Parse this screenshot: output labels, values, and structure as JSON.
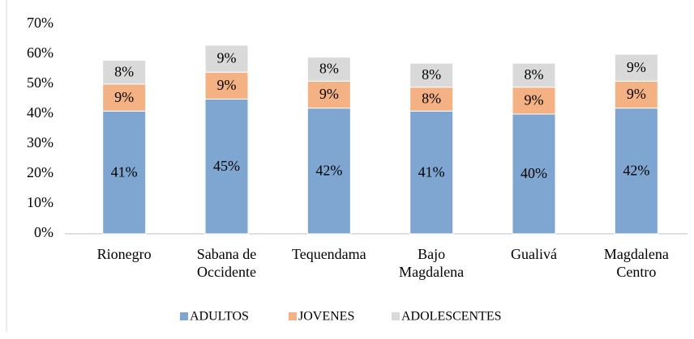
{
  "chart_data": {
    "type": "stacked_bar",
    "categories": [
      "Rionegro",
      "Sabana de Occidente",
      "Tequendama",
      "Bajo Magdalena",
      "Gualivá",
      "Magdalena Centro"
    ],
    "series": [
      {
        "name": "ADULTOS",
        "color": "#7ea6d0",
        "values": [
          41,
          45,
          42,
          41,
          40,
          42
        ],
        "value_labels": [
          "41%",
          "45%",
          "42%",
          "41%",
          "40%",
          "42%"
        ]
      },
      {
        "name": "JOVENES",
        "color": "#f4b183",
        "values": [
          9,
          9,
          9,
          8,
          9,
          9
        ],
        "value_labels": [
          "9%",
          "9%",
          "9%",
          "8%",
          "9%",
          "9%"
        ]
      },
      {
        "name": "ADOLESCENTES",
        "color": "#d9d9d9",
        "values": [
          8,
          9,
          8,
          8,
          8,
          9
        ],
        "value_labels": [
          "8%",
          "9%",
          "8%",
          "8%",
          "8%",
          "9%"
        ]
      }
    ],
    "ylim": [
      0,
      70
    ],
    "yticks": [
      {
        "value": 0,
        "label": "0%"
      },
      {
        "value": 10,
        "label": "10%"
      },
      {
        "value": 20,
        "label": "20%"
      },
      {
        "value": 30,
        "label": "30%"
      },
      {
        "value": 40,
        "label": "40%"
      },
      {
        "value": 50,
        "label": "50%"
      },
      {
        "value": 60,
        "label": "60%"
      },
      {
        "value": 70,
        "label": "70%"
      }
    ],
    "legend": "bottom"
  }
}
